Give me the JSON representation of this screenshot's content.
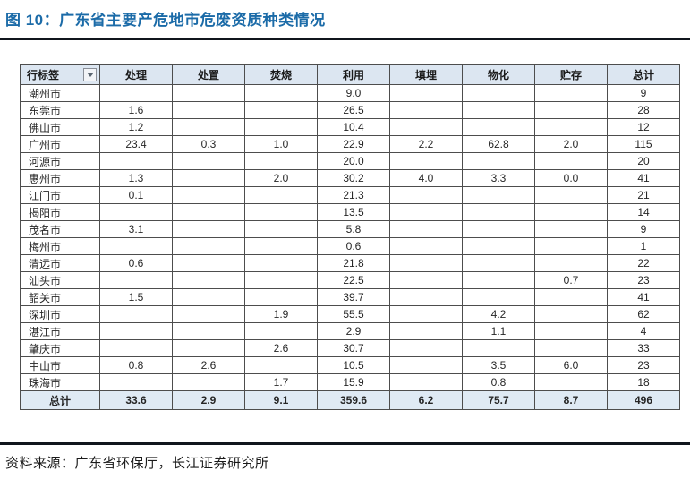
{
  "page": {
    "title": "图 10：广东省主要产危地市危废资质种类情况",
    "source_note": "资料来源：广东省环保厅，长江证券研究所"
  },
  "colors": {
    "title_blue": "#1b6ba8",
    "rule_dark": "#10151d",
    "header_bg": "#dce6f1",
    "total_row_bg": "#dfeaf4",
    "cell_border": "#4d4d4d"
  },
  "chart_data": {
    "type": "table",
    "columns": [
      "行标签",
      "处理",
      "处置",
      "焚烧",
      "利用",
      "填埋",
      "物化",
      "贮存",
      "总计"
    ],
    "filter_icon": "chevron-down-icon",
    "rows": [
      {
        "label": "潮州市",
        "values": [
          "",
          "",
          "",
          "9.0",
          "",
          "",
          "",
          "9"
        ]
      },
      {
        "label": "东莞市",
        "values": [
          "1.6",
          "",
          "",
          "26.5",
          "",
          "",
          "",
          "28"
        ]
      },
      {
        "label": "佛山市",
        "values": [
          "1.2",
          "",
          "",
          "10.4",
          "",
          "",
          "",
          "12"
        ]
      },
      {
        "label": "广州市",
        "values": [
          "23.4",
          "0.3",
          "1.0",
          "22.9",
          "2.2",
          "62.8",
          "2.0",
          "115"
        ]
      },
      {
        "label": "河源市",
        "values": [
          "",
          "",
          "",
          "20.0",
          "",
          "",
          "",
          "20"
        ]
      },
      {
        "label": "惠州市",
        "values": [
          "1.3",
          "",
          "2.0",
          "30.2",
          "4.0",
          "3.3",
          "0.0",
          "41"
        ]
      },
      {
        "label": "江门市",
        "values": [
          "0.1",
          "",
          "",
          "21.3",
          "",
          "",
          "",
          "21"
        ]
      },
      {
        "label": "揭阳市",
        "values": [
          "",
          "",
          "",
          "13.5",
          "",
          "",
          "",
          "14"
        ]
      },
      {
        "label": "茂名市",
        "values": [
          "3.1",
          "",
          "",
          "5.8",
          "",
          "",
          "",
          "9"
        ]
      },
      {
        "label": "梅州市",
        "values": [
          "",
          "",
          "",
          "0.6",
          "",
          "",
          "",
          "1"
        ]
      },
      {
        "label": "清远市",
        "values": [
          "0.6",
          "",
          "",
          "21.8",
          "",
          "",
          "",
          "22"
        ]
      },
      {
        "label": "汕头市",
        "values": [
          "",
          "",
          "",
          "22.5",
          "",
          "",
          "0.7",
          "23"
        ]
      },
      {
        "label": "韶关市",
        "values": [
          "1.5",
          "",
          "",
          "39.7",
          "",
          "",
          "",
          "41"
        ]
      },
      {
        "label": "深圳市",
        "values": [
          "",
          "",
          "1.9",
          "55.5",
          "",
          "4.2",
          "",
          "62"
        ]
      },
      {
        "label": "湛江市",
        "values": [
          "",
          "",
          "",
          "2.9",
          "",
          "1.1",
          "",
          "4"
        ]
      },
      {
        "label": "肇庆市",
        "values": [
          "",
          "",
          "2.6",
          "30.7",
          "",
          "",
          "",
          "33"
        ]
      },
      {
        "label": "中山市",
        "values": [
          "0.8",
          "2.6",
          "",
          "10.5",
          "",
          "3.5",
          "6.0",
          "23"
        ]
      },
      {
        "label": "珠海市",
        "values": [
          "",
          "",
          "1.7",
          "15.9",
          "",
          "0.8",
          "",
          "18"
        ]
      }
    ],
    "total_row": {
      "label": "总计",
      "values": [
        "33.6",
        "2.9",
        "9.1",
        "359.6",
        "6.2",
        "75.7",
        "8.7",
        "496"
      ]
    }
  }
}
